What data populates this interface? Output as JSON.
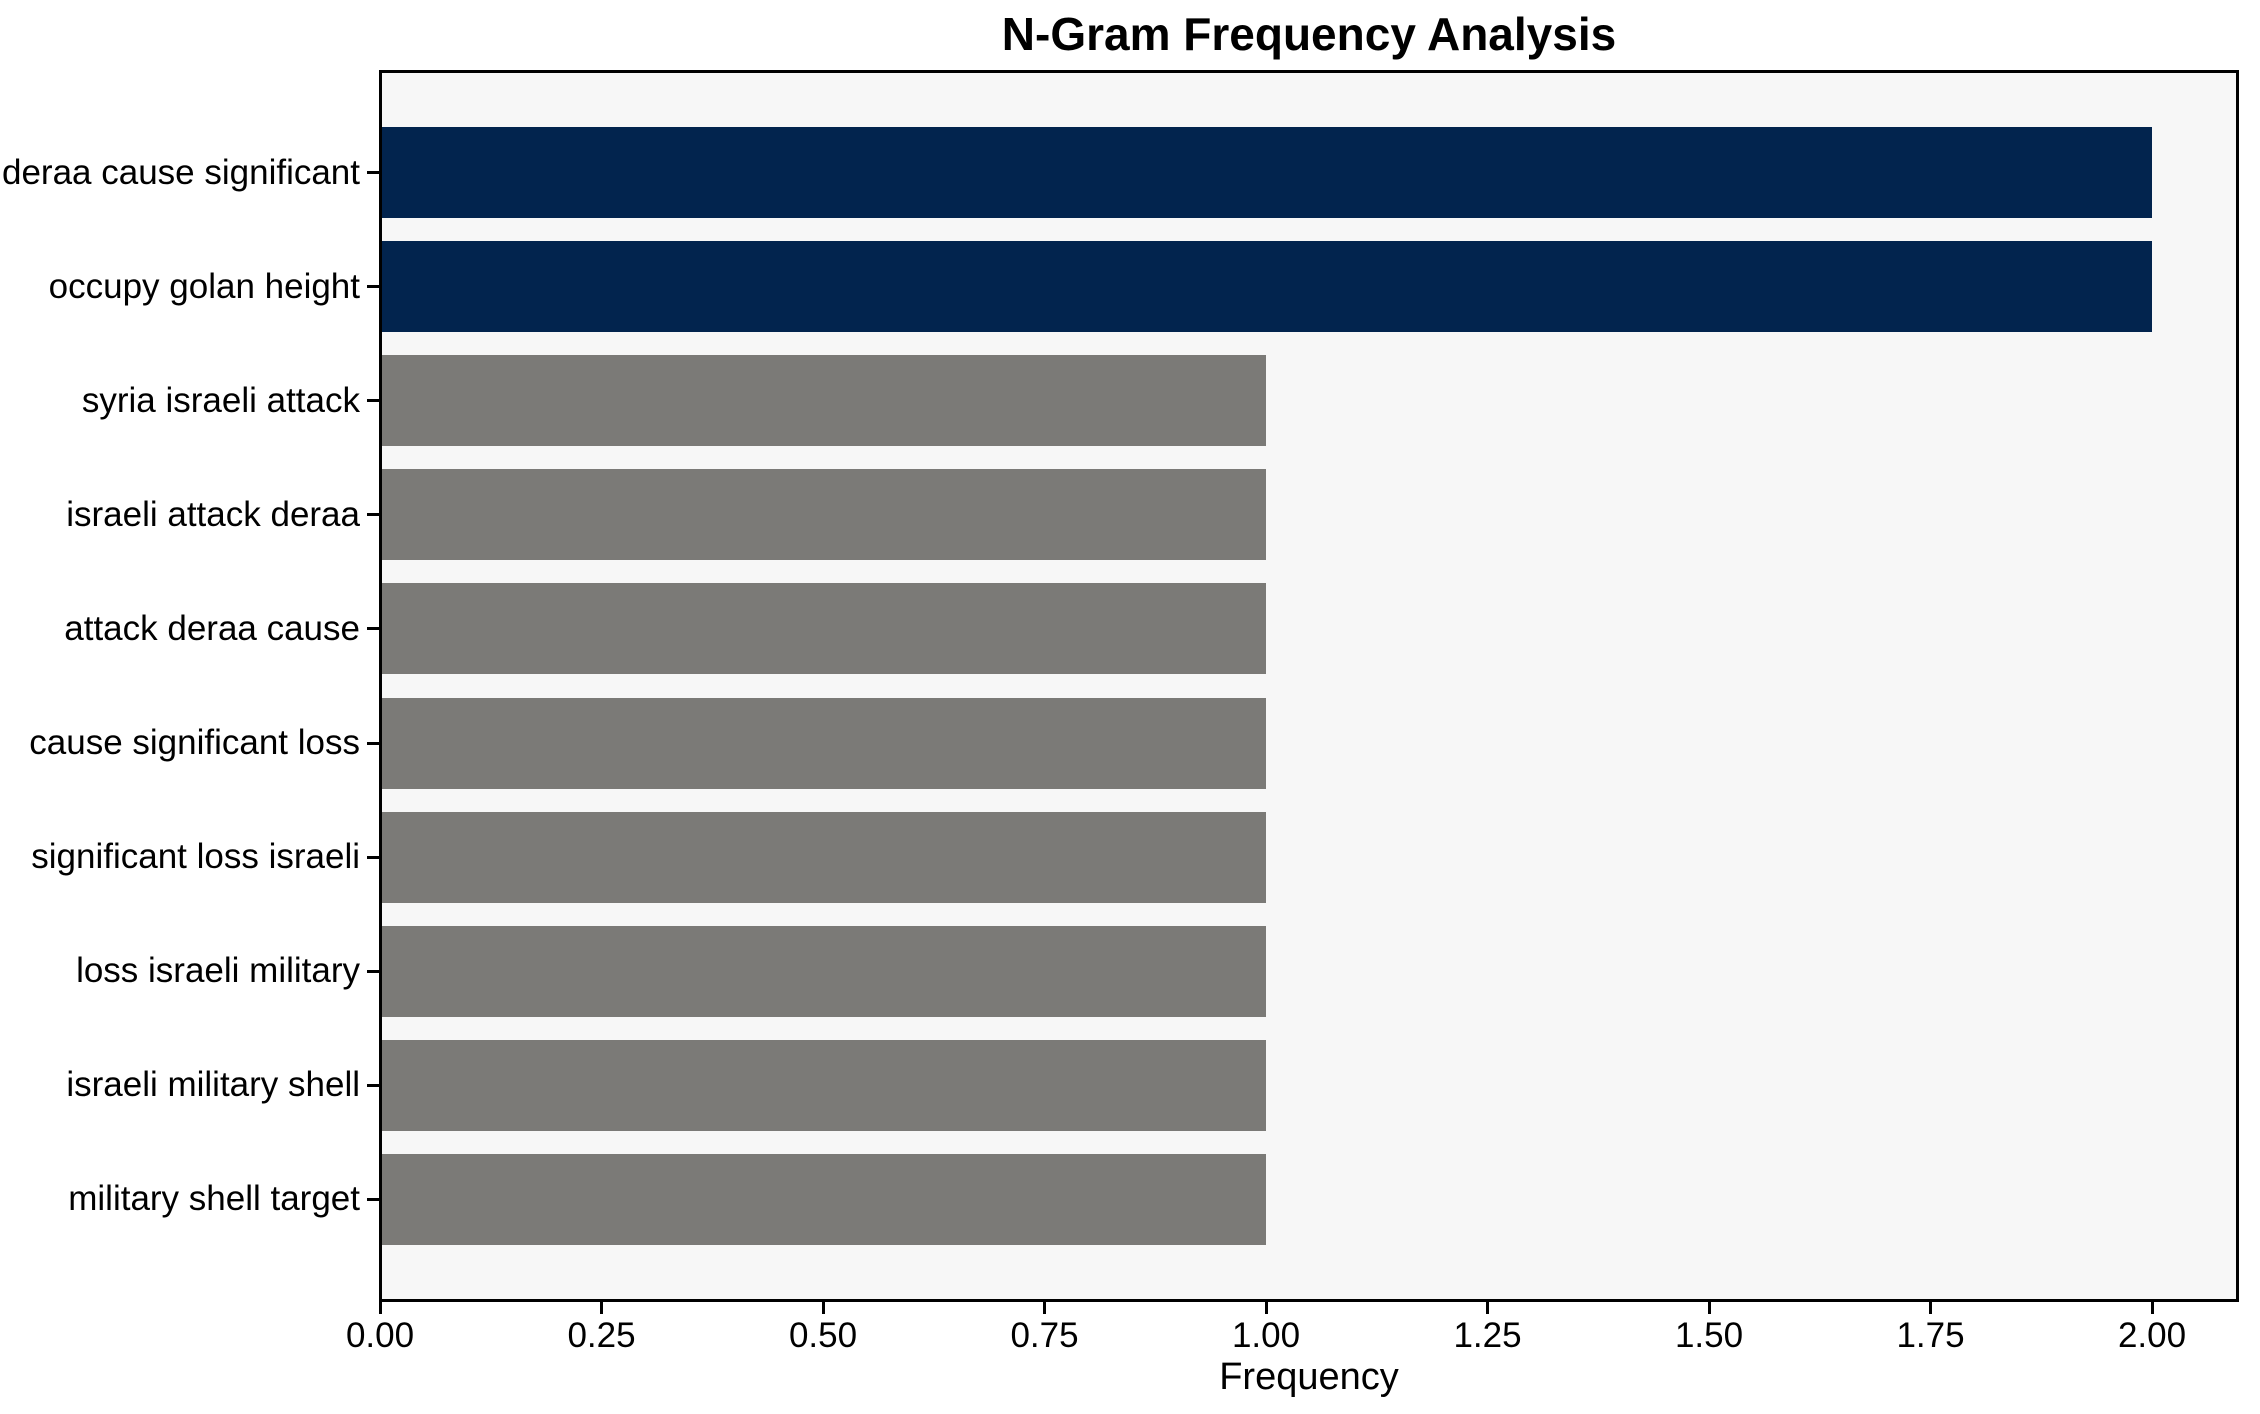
{
  "chart_data": {
    "type": "bar",
    "orientation": "horizontal",
    "title": "N-Gram Frequency Analysis",
    "xlabel": "Frequency",
    "ylabel": "",
    "categories": [
      "deraa cause significant",
      "occupy golan height",
      "syria israeli attack",
      "israeli attack deraa",
      "attack deraa cause",
      "cause significant loss",
      "significant loss israeli",
      "loss israeli military",
      "israeli military shell",
      "military shell target"
    ],
    "values": [
      2,
      2,
      1,
      1,
      1,
      1,
      1,
      1,
      1,
      1
    ],
    "xlim": [
      0,
      2.1
    ],
    "xticks": [
      0.0,
      0.25,
      0.5,
      0.75,
      1.0,
      1.25,
      1.5,
      1.75,
      2.0
    ],
    "xtick_labels": [
      "0.00",
      "0.25",
      "0.50",
      "0.75",
      "1.00",
      "1.25",
      "1.50",
      "1.75",
      "2.00"
    ],
    "grid": false,
    "legend": null,
    "bar_color_roles": [
      "highlight",
      "highlight",
      "regular",
      "regular",
      "regular",
      "regular",
      "regular",
      "regular",
      "regular",
      "regular"
    ],
    "colors": {
      "highlight_bar": "#02244e",
      "regular_bar": "#7b7a77",
      "plot_background": "#f7f7f7",
      "figure_background": "#ffffff",
      "axis": "#000000",
      "text": "#000000"
    }
  }
}
